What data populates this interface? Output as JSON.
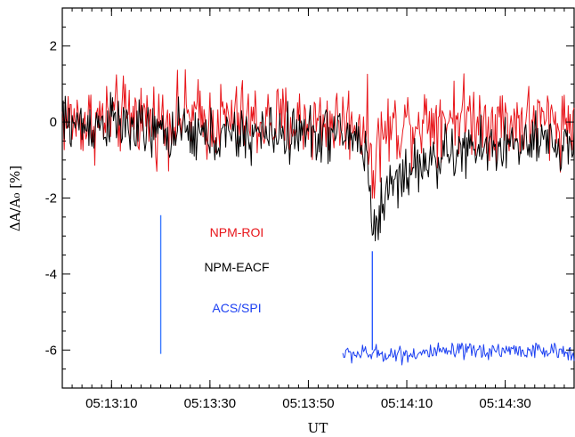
{
  "chart_data": {
    "type": "line",
    "xlabel": "UT",
    "ylabel": "ΔA/A₀ [%]",
    "ylim": [
      -7,
      3
    ],
    "xlim": [
      "05:13:00",
      "05:14:44"
    ],
    "grid": false,
    "xticks": [
      "05:13:10",
      "05:13:30",
      "05:13:50",
      "05:14:10",
      "05:14:30"
    ],
    "yticks": [
      "2",
      "0",
      "-2",
      "-4",
      "-6"
    ],
    "legend_labels": {
      "roi": "NPM-ROI",
      "eacf": "NPM-EACF",
      "acs": "ACS/SPI"
    },
    "annotations": [
      {
        "type": "vertical-line",
        "x": "05:13:20",
        "y": [
          -6.1,
          -2.45
        ],
        "color": "#3a78ff"
      },
      {
        "type": "vertical-line",
        "x": "05:14:03",
        "y": [
          -6.0,
          -3.4
        ],
        "color": "#2a5aff"
      }
    ],
    "series": [
      {
        "name": "NPM-ROI",
        "color": "#e8161b",
        "x": [
          "05:13:00",
          "05:13:05",
          "05:13:10",
          "05:13:15",
          "05:13:20",
          "05:13:25",
          "05:13:30",
          "05:13:35",
          "05:13:40",
          "05:13:45",
          "05:13:50",
          "05:13:55",
          "05:14:00",
          "05:14:02",
          "05:14:03",
          "05:14:04",
          "05:14:05",
          "05:14:10",
          "05:14:15",
          "05:14:20",
          "05:14:25",
          "05:14:30",
          "05:14:35",
          "05:14:40",
          "05:14:44"
        ],
        "y": [
          0.1,
          0.0,
          0.1,
          0.2,
          0.0,
          0.2,
          0.0,
          0.1,
          0.0,
          0.0,
          0.0,
          0.0,
          0.0,
          -0.2,
          -1.3,
          -0.7,
          -0.3,
          0.0,
          0.1,
          0.2,
          0.1,
          0.0,
          0.0,
          0.0,
          0.0
        ],
        "noise_amplitude": 0.75
      },
      {
        "name": "NPM-EACF",
        "color": "#000000",
        "x": [
          "05:13:00",
          "05:13:05",
          "05:13:10",
          "05:13:15",
          "05:13:20",
          "05:13:25",
          "05:13:30",
          "05:13:35",
          "05:13:40",
          "05:13:45",
          "05:13:50",
          "05:13:55",
          "05:14:00",
          "05:14:02",
          "05:14:03",
          "05:14:04",
          "05:14:05",
          "05:14:07",
          "05:14:10",
          "05:14:15",
          "05:14:20",
          "05:14:25",
          "05:14:30",
          "05:14:35",
          "05:14:40",
          "05:14:44"
        ],
        "y": [
          0.0,
          -0.1,
          0.0,
          -0.2,
          -0.3,
          -0.3,
          -0.4,
          -0.4,
          -0.3,
          -0.3,
          -0.3,
          -0.3,
          -0.4,
          -0.9,
          -2.9,
          -2.6,
          -2.1,
          -1.6,
          -1.3,
          -1.0,
          -0.8,
          -0.7,
          -0.6,
          -0.6,
          -0.6,
          -0.6
        ],
        "noise_amplitude": 0.55
      },
      {
        "name": "ACS/SPI",
        "color": "#1b3ff2",
        "x": [
          "05:13:57",
          "05:14:00",
          "05:14:10",
          "05:14:20",
          "05:14:30",
          "05:14:40",
          "05:14:44"
        ],
        "y": [
          -6.1,
          -6.1,
          -6.1,
          -6.05,
          -6.0,
          -6.05,
          -6.05
        ],
        "noise_amplitude": 0.17
      }
    ]
  }
}
